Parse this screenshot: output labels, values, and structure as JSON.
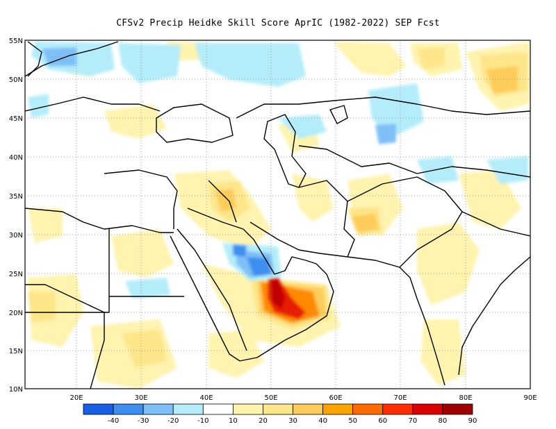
{
  "title": "CFSv2 Precip Heidke Skill Score AprIC (1982-2022) SEP Fcst",
  "map": {
    "lat_labels": [
      "55N",
      "50N",
      "45N",
      "40N",
      "35N",
      "30N",
      "25N",
      "20N",
      "15N",
      "10N"
    ],
    "lon_labels": [
      "20E",
      "30E",
      "40E",
      "50E",
      "60E",
      "70E",
      "80E",
      "90E"
    ],
    "lon_range": [
      12,
      90
    ],
    "lat_range": [
      10,
      55
    ],
    "grid": "dotted"
  },
  "colorbar": {
    "labels": [
      "-40",
      "-30",
      "-20",
      "-10",
      "10",
      "20",
      "30",
      "40",
      "50",
      "60",
      "70",
      "80",
      "90"
    ],
    "colors": [
      "#1a5ee6",
      "#3c8ff0",
      "#7fbff8",
      "#b4ecfa",
      "#ffffff",
      "#fff3b0",
      "#fde58a",
      "#fdcc5a",
      "#fda300",
      "#ff6a00",
      "#ff2e00",
      "#d80000",
      "#a00000"
    ]
  },
  "features": {
    "strong_positive_region": "Rub al Khali (eastern Saudi Arabia / Oman)",
    "negative_region": "Persian Gulf coast (eastern Saudi Arabia)"
  }
}
